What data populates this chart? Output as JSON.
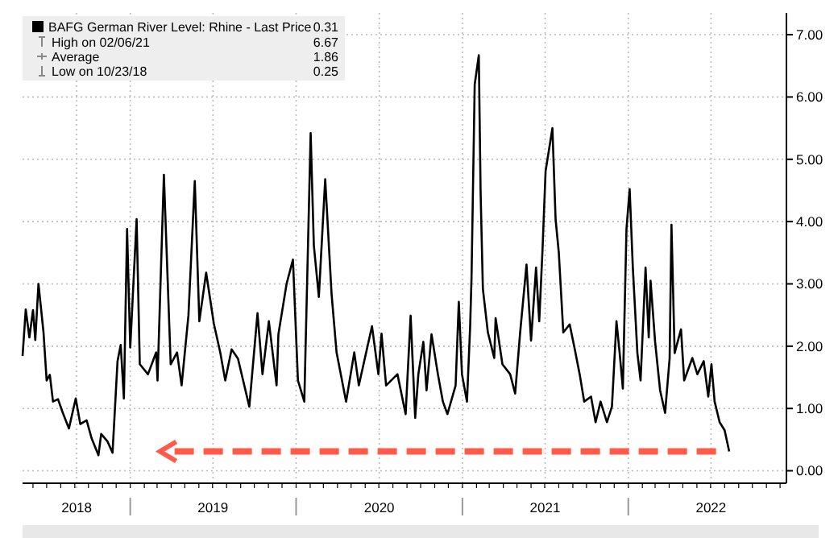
{
  "chart_data": {
    "type": "line",
    "legend": "top left",
    "grid": true,
    "line_style": "solid",
    "marker": "none",
    "xlim": [
      "2018-05-09",
      "2022-12-15"
    ],
    "ylim": [
      -0.2,
      7.35
    ],
    "yticks": [
      {
        "value": 0,
        "label": "0.00"
      },
      {
        "value": 1,
        "label": "1.00"
      },
      {
        "value": 2,
        "label": "2.00"
      },
      {
        "value": 3,
        "label": "3.00"
      },
      {
        "value": 4,
        "label": "4.00"
      },
      {
        "value": 5,
        "label": "5.00"
      },
      {
        "value": 6,
        "label": "6.00"
      },
      {
        "value": 7,
        "label": "7.00"
      }
    ],
    "xticks": [
      {
        "value": "2018-09-05",
        "label": "2018"
      },
      {
        "value": "2019-01-01",
        "label": null
      },
      {
        "value": "2019-07-02",
        "label": "2019"
      },
      {
        "value": "2020-01-01",
        "label": null
      },
      {
        "value": "2020-07-02",
        "label": "2020"
      },
      {
        "value": "2021-01-01",
        "label": null
      },
      {
        "value": "2021-07-02",
        "label": "2021"
      },
      {
        "value": "2022-01-01",
        "label": null
      },
      {
        "value": "2022-07-02",
        "label": "2022"
      }
    ],
    "ref_lines": [
      {
        "axis": "y",
        "value": 0.31,
        "color": "#ff5a4a",
        "line_style": "dashed"
      }
    ],
    "annotations": [
      "0.31",
      "High on 02/06/21",
      "6.67",
      "Average",
      "1.86",
      "Low on 10/23/18",
      "0.25"
    ],
    "series": [
      {
        "name": "BAFG German River Level: Rhine - Last Price",
        "color": "#000000",
        "x": [
          "2018-05-09",
          "2018-05-16",
          "2018-05-24",
          "2018-06-01",
          "2018-06-06",
          "2018-06-13",
          "2018-06-24",
          "2018-07-01",
          "2018-07-08",
          "2018-07-15",
          "2018-07-26",
          "2018-08-05",
          "2018-08-19",
          "2018-09-03",
          "2018-09-13",
          "2018-09-27",
          "2018-10-08",
          "2018-10-23",
          "2018-10-29",
          "2018-11-12",
          "2018-11-23",
          "2018-12-04",
          "2018-12-11",
          "2018-12-18",
          "2018-12-25",
          "2019-01-01",
          "2019-01-15",
          "2019-01-22",
          "2019-02-09",
          "2019-02-27",
          "2019-03-02",
          "2019-03-16",
          "2019-03-31",
          "2019-04-14",
          "2019-04-24",
          "2019-05-09",
          "2019-05-23",
          "2019-06-02",
          "2019-06-17",
          "2019-07-04",
          "2019-07-18",
          "2019-07-29",
          "2019-08-12",
          "2019-08-26",
          "2019-09-20",
          "2019-10-08",
          "2019-10-19",
          "2019-11-02",
          "2019-11-19",
          "2019-11-23",
          "2019-12-11",
          "2019-12-25",
          "2020-01-05",
          "2020-01-19",
          "2020-02-02",
          "2020-02-09",
          "2020-02-20",
          "2020-03-05",
          "2020-03-19",
          "2020-03-30",
          "2020-04-20",
          "2020-05-08",
          "2020-05-18",
          "2020-06-16",
          "2020-06-30",
          "2020-07-07",
          "2020-07-17",
          "2020-08-11",
          "2020-08-29",
          "2020-09-09",
          "2020-09-19",
          "2020-09-26",
          "2020-10-07",
          "2020-10-14",
          "2020-10-25",
          "2020-11-08",
          "2020-11-19",
          "2020-11-29",
          "2020-12-17",
          "2020-12-24",
          "2020-12-31",
          "2021-01-11",
          "2021-01-18",
          "2021-01-21",
          "2021-01-28",
          "2021-02-06",
          "2021-02-10",
          "2021-02-15",
          "2021-02-26",
          "2021-03-12",
          "2021-03-15",
          "2021-03-30",
          "2021-04-16",
          "2021-04-27",
          "2021-05-08",
          "2021-05-22",
          "2021-06-01",
          "2021-06-12",
          "2021-06-19",
          "2021-06-26",
          "2021-07-03",
          "2021-07-18",
          "2021-07-25",
          "2021-08-01",
          "2021-08-11",
          "2021-08-25",
          "2021-09-05",
          "2021-09-16",
          "2021-09-26",
          "2021-10-11",
          "2021-10-21",
          "2021-11-01",
          "2021-11-15",
          "2021-11-26",
          "2021-12-06",
          "2021-12-13",
          "2021-12-20",
          "2021-12-28",
          "2022-01-04",
          "2022-01-11",
          "2022-01-21",
          "2022-01-28",
          "2022-02-08",
          "2022-02-15",
          "2022-02-19",
          "2022-03-01",
          "2022-03-12",
          "2022-03-23",
          "2022-04-02",
          "2022-04-06",
          "2022-04-13",
          "2022-04-27",
          "2022-05-04",
          "2022-05-22",
          "2022-06-02",
          "2022-06-16",
          "2022-06-26",
          "2022-07-03",
          "2022-07-10",
          "2022-07-21",
          "2022-08-01",
          "2022-08-11"
        ],
        "values": [
          1.84,
          2.59,
          2.14,
          2.58,
          2.1,
          3.0,
          2.23,
          1.45,
          1.54,
          1.11,
          1.15,
          0.94,
          0.68,
          1.16,
          0.75,
          0.81,
          0.52,
          0.25,
          0.59,
          0.47,
          0.29,
          1.76,
          2.02,
          1.16,
          3.88,
          1.98,
          4.04,
          1.71,
          1.55,
          1.9,
          1.45,
          4.75,
          1.71,
          1.9,
          1.37,
          2.49,
          4.65,
          2.4,
          3.18,
          2.36,
          1.9,
          1.45,
          1.95,
          1.8,
          1.03,
          2.53,
          1.55,
          2.4,
          1.37,
          2.19,
          3.0,
          3.39,
          1.45,
          1.11,
          5.42,
          3.62,
          2.79,
          4.68,
          2.84,
          1.9,
          1.11,
          1.9,
          1.37,
          2.32,
          1.55,
          2.2,
          1.37,
          1.55,
          0.91,
          2.49,
          0.85,
          1.55,
          2.07,
          1.29,
          2.19,
          1.55,
          1.11,
          0.91,
          1.37,
          2.71,
          1.55,
          1.11,
          2.32,
          3.1,
          6.2,
          6.67,
          4.47,
          2.92,
          2.22,
          1.81,
          2.45,
          1.71,
          1.55,
          1.24,
          2.22,
          3.31,
          2.09,
          3.26,
          2.4,
          3.51,
          4.81,
          5.5,
          4.04,
          3.51,
          2.22,
          2.35,
          1.96,
          1.55,
          1.11,
          1.19,
          0.78,
          1.11,
          0.78,
          1.03,
          2.4,
          1.89,
          1.32,
          3.88,
          4.52,
          3.26,
          1.89,
          1.45,
          3.26,
          2.14,
          3.05,
          2.07,
          1.29,
          0.93,
          1.81,
          3.95,
          1.89,
          2.27,
          1.45,
          1.81,
          1.55,
          1.76,
          1.19,
          1.71,
          1.11,
          0.78,
          0.65,
          0.31
        ]
      }
    ]
  }
}
